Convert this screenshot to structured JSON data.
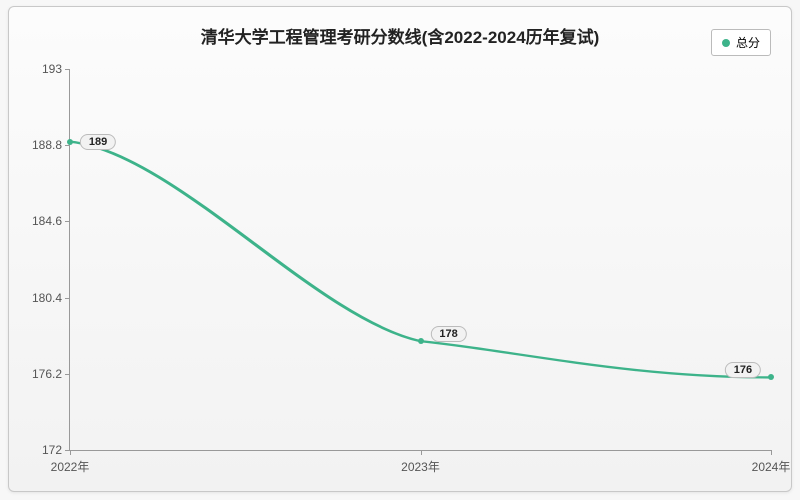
{
  "chart": {
    "type": "line",
    "title": "清华大学工程管理考研分数线(含2022-2024历年复试)",
    "title_fontsize": 17,
    "legend": {
      "label": "总分",
      "color": "#3db38a"
    },
    "background_color": "#f7f7f7",
    "panel_gradient_top": "#fcfcfc",
    "panel_gradient_bottom": "#f2f2f2",
    "axis_color": "#999999",
    "tick_label_color": "#555555",
    "tick_fontsize": 12,
    "x": {
      "categories": [
        "2022年",
        "2023年",
        "2024年"
      ],
      "positions_pct": [
        0,
        50,
        100
      ]
    },
    "y": {
      "min": 172,
      "max": 193,
      "ticks": [
        172,
        176.2,
        180.4,
        184.6,
        188.8,
        193
      ]
    },
    "series": {
      "name": "总分",
      "color": "#3db38a",
      "line_width": 2,
      "marker_radius": 3,
      "values": [
        189,
        178,
        176
      ],
      "point_labels": [
        "189",
        "178",
        "176"
      ],
      "label_offsets": [
        {
          "dx_pct": 4,
          "dy_pct": 0
        },
        {
          "dx_pct": 4,
          "dy_pct": -2
        },
        {
          "dx_pct": -4,
          "dy_pct": -2
        }
      ]
    }
  }
}
